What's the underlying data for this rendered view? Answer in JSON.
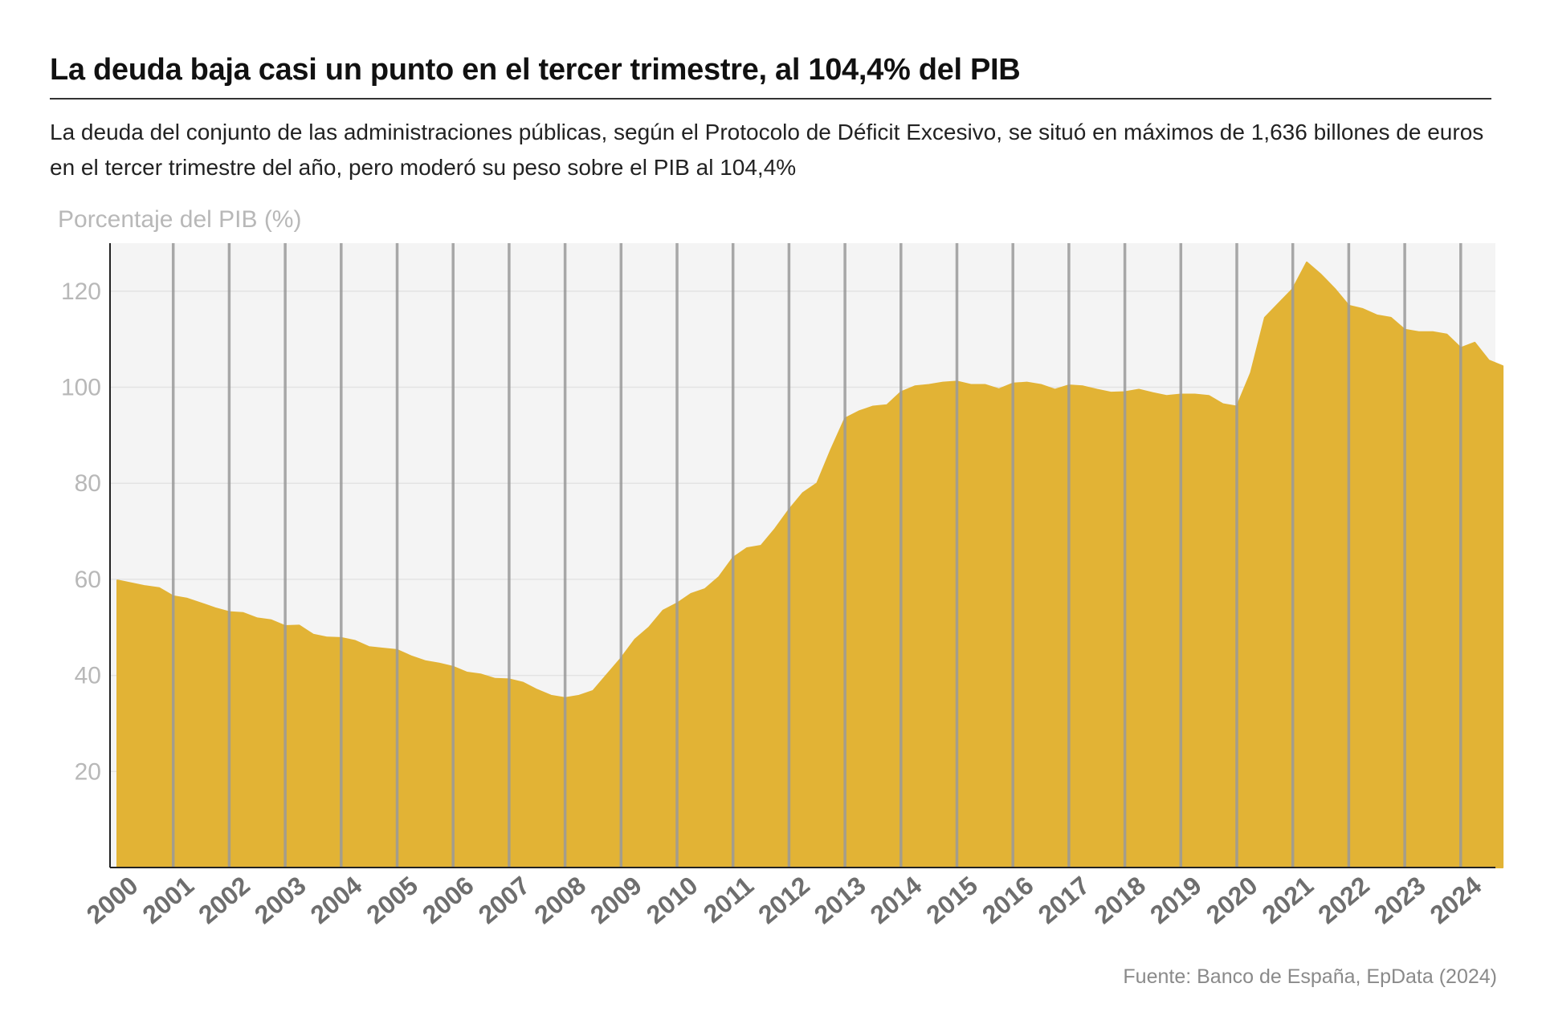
{
  "title": "La deuda baja casi un punto en el tercer trimestre, al 104,4% del PIB",
  "subtitle": "La deuda del conjunto de las administraciones públicas, según el Protocolo de Déficit Excesivo, se situó en máximos de 1,636 billones de euros en el tercer trimestre del año, pero moderó su peso sobre el PIB al 104,4%",
  "source": "Fuente: Banco de España, EpData (2024)",
  "colors": {
    "area": "#E2B335",
    "plot_bg": "#F4F4F4",
    "year_line": "#9a9a9a",
    "axis": "#222222",
    "tick_text": "#b8b8b8",
    "year_text": "#6e6e6e"
  },
  "chart_data": {
    "type": "area",
    "title": "La deuda baja casi un punto en el tercer trimestre, al 104,4% del PIB",
    "ylabel": "Porcentaje del PIB (%)",
    "xlabel": "",
    "ylim": [
      0,
      130
    ],
    "yticks": [
      20,
      40,
      60,
      80,
      100,
      120
    ],
    "grid": true,
    "x_tick_labels": [
      "2000",
      "2001",
      "2002",
      "2003",
      "2004",
      "2005",
      "2006",
      "2007",
      "2008",
      "2009",
      "2010",
      "2011",
      "2012",
      "2013",
      "2014",
      "2015",
      "2016",
      "2017",
      "2018",
      "2019",
      "2020",
      "2021",
      "2022",
      "2023",
      "2024"
    ],
    "x_unit": "quarter",
    "x_start": "2000-Q1",
    "series": [
      {
        "name": "",
        "values": [
          59.8,
          59.2,
          58.6,
          58.2,
          56.5,
          56.0,
          55.0,
          54.0,
          53.2,
          53.0,
          51.9,
          51.5,
          50.3,
          50.4,
          48.5,
          47.9,
          47.8,
          47.2,
          45.9,
          45.6,
          45.3,
          44.0,
          43.0,
          42.5,
          41.8,
          40.6,
          40.2,
          39.3,
          39.2,
          38.5,
          37.0,
          35.8,
          35.3,
          35.8,
          36.8,
          40.2,
          43.6,
          47.5,
          50.0,
          53.5,
          55.0,
          57.0,
          58.0,
          60.5,
          64.5,
          66.5,
          67.0,
          70.5,
          74.5,
          78.0,
          80.0,
          87.0,
          93.5,
          95.0,
          96.0,
          96.3,
          99.0,
          100.2,
          100.5,
          101.0,
          101.2,
          100.5,
          100.5,
          99.6,
          100.8,
          101.0,
          100.5,
          99.5,
          100.4,
          100.2,
          99.5,
          98.9,
          99.0,
          99.5,
          98.8,
          98.2,
          98.5,
          98.5,
          98.2,
          96.5,
          96.0,
          103.0,
          114.5,
          117.5,
          120.5,
          126.0,
          123.5,
          120.5,
          117.0,
          116.3,
          115.0,
          114.5,
          112.0,
          111.5,
          111.5,
          111.0,
          108.2,
          109.3,
          105.6,
          104.4
        ]
      }
    ]
  }
}
